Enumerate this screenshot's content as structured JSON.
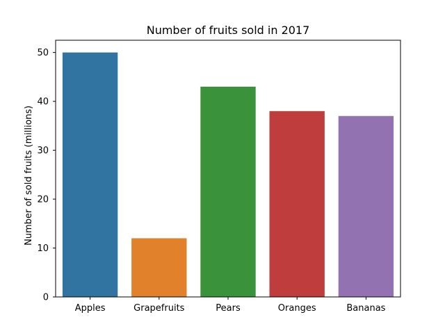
{
  "chart_data": {
    "type": "bar",
    "title": "Number of fruits sold in 2017",
    "xlabel": "",
    "ylabel": "Number of sold fruits (millions)",
    "categories": [
      "Apples",
      "Grapefruits",
      "Pears",
      "Oranges",
      "Bananas"
    ],
    "values": [
      50,
      12,
      43,
      38,
      37
    ],
    "colors": [
      "#3274a1",
      "#e1812c",
      "#3a923a",
      "#c03d3e",
      "#9372b2"
    ],
    "ylim": [
      0,
      52.5
    ],
    "yticks": [
      0,
      10,
      20,
      30,
      40,
      50
    ],
    "grid": false,
    "legend": "none"
  }
}
